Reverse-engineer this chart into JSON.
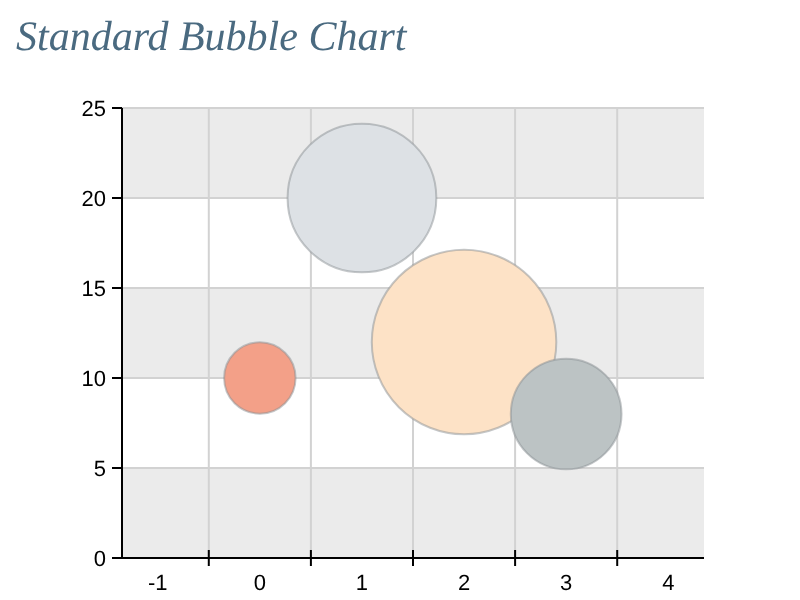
{
  "chart_data": {
    "type": "bubble",
    "title": "Standard Bubble Chart",
    "x": [
      0,
      1,
      2,
      3
    ],
    "values": [
      10,
      20,
      12,
      8
    ],
    "sizes": [
      0.15,
      0.65,
      1,
      0.36
    ],
    "colors": [
      "#f3a088",
      "#dde1e5",
      "#fde2c6",
      "#bcc3c4"
    ],
    "xlim": [
      -1.35,
      4.35
    ],
    "xticks": [
      -1,
      {
        "value": -0.5,
        "label": null
      },
      0,
      {
        "value": 0.5,
        "label": null
      },
      1,
      {
        "value": 1.5,
        "label": null
      },
      2,
      {
        "value": 2.5,
        "label": null
      },
      3,
      {
        "value": 3.5,
        "label": null
      },
      4
    ],
    "ylim": [
      0,
      25
    ],
    "yticks": [
      0,
      5,
      10,
      15,
      20,
      25
    ],
    "grid": true
  }
}
